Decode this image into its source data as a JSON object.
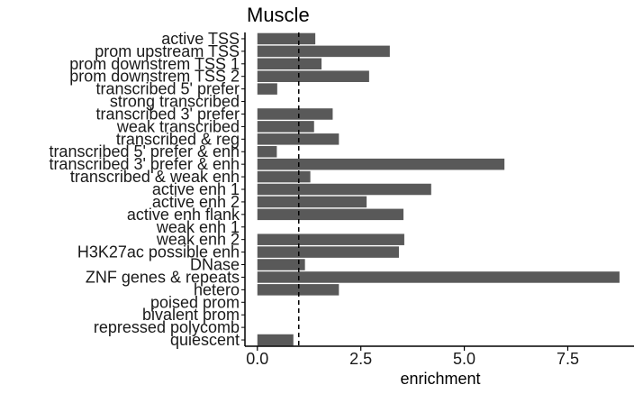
{
  "chart_data": {
    "type": "bar",
    "orientation": "horizontal",
    "title": "Muscle",
    "xlabel": "enrichment",
    "ylabel": "",
    "xlim": [
      -0.3,
      9.1
    ],
    "xticks": [
      0,
      2.5,
      5,
      7.5
    ],
    "xtick_labels": [
      "0.0",
      "2.5",
      "5.0",
      "7.5"
    ],
    "reference_line": 1,
    "bar_color": "#595959",
    "grid": false,
    "categories": [
      "active TSS",
      "prom upstream TSS",
      "prom downstrem TSS 1",
      "prom downstrem TSS 2",
      "transcribed 5' prefer",
      "strong transcribed",
      "transcribed 3' prefer",
      "weak transcribed",
      "transcribed & reg",
      "transcribed 5' prefer & enh",
      "transcribed 3' prefer & enh",
      "transcribed & weak enh",
      "active enh 1",
      "active enh 2",
      "active enh flank",
      "weak enh 1",
      "weak enh 2",
      "H3K27ac possible enh",
      "DNase",
      "ZNF genes & repeats",
      "hetero",
      "poised prom",
      "bivalent prom",
      "repressed polycomb",
      "quiescent"
    ],
    "values": [
      1.4,
      3.2,
      1.55,
      2.7,
      0.48,
      0,
      1.82,
      1.37,
      1.97,
      0.47,
      5.97,
      1.28,
      4.2,
      2.64,
      3.53,
      0,
      3.55,
      3.42,
      1.15,
      8.75,
      1.97,
      0,
      0,
      0,
      0.87
    ]
  }
}
